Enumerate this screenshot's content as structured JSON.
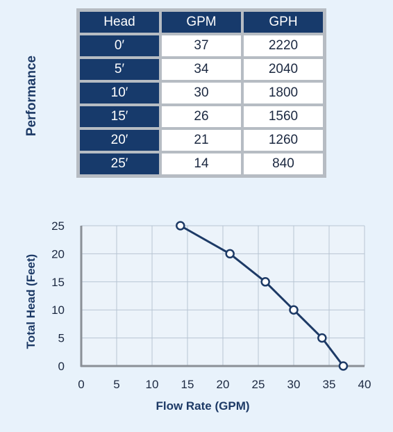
{
  "side_label": "Performance",
  "table": {
    "headers": [
      "Head",
      "GPM",
      "GPH"
    ],
    "rows": [
      {
        "head": "0′",
        "gpm": "37",
        "gph": "2220"
      },
      {
        "head": "5′",
        "gpm": "34",
        "gph": "2040"
      },
      {
        "head": "10′",
        "gpm": "30",
        "gph": "1800"
      },
      {
        "head": "15′",
        "gpm": "26",
        "gph": "1560"
      },
      {
        "head": "20′",
        "gpm": "21",
        "gph": "1260"
      },
      {
        "head": "25′",
        "gpm": "14",
        "gph": "840"
      }
    ]
  },
  "chart_data": {
    "type": "line",
    "xlabel": "Flow Rate (GPM)",
    "ylabel": "Total Head (Feet)",
    "xlim": [
      0,
      40
    ],
    "ylim": [
      0,
      25
    ],
    "xticks": [
      0,
      5,
      10,
      15,
      20,
      25,
      30,
      35,
      40
    ],
    "yticks": [
      0,
      5,
      10,
      15,
      20,
      25
    ],
    "grid": true,
    "series": [
      {
        "x": [
          14,
          21,
          26,
          30,
          34,
          37
        ],
        "y": [
          25,
          20,
          15,
          10,
          5,
          0
        ]
      }
    ],
    "colors": {
      "line": "#1d3a66",
      "grid": "#b7c4d3",
      "axis": "#8a8f96",
      "marker_fill": "#ffffff"
    }
  }
}
